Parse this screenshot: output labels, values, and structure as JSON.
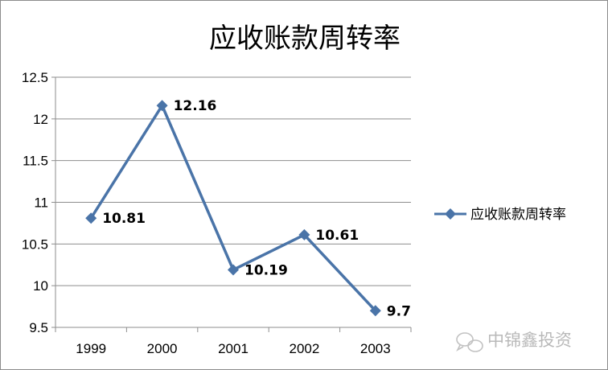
{
  "chart_data": {
    "type": "line",
    "title": "应收账款周转率",
    "categories": [
      "1999",
      "2000",
      "2001",
      "2002",
      "2003"
    ],
    "series": [
      {
        "name": "应收账款周转率",
        "values": [
          10.81,
          12.16,
          10.19,
          10.61,
          9.7
        ],
        "labels": [
          "10.81",
          "12.16",
          "10.19",
          "10.61",
          "9.7"
        ],
        "color": "#4a74a8",
        "marker": "diamond"
      }
    ],
    "ylim": [
      9.5,
      12.5
    ],
    "yticks": [
      "9.5",
      "10",
      "10.5",
      "11",
      "11.5",
      "12",
      "12.5"
    ],
    "grid": true,
    "legend_position": "right"
  },
  "watermark": {
    "text": "中锦鑫投资",
    "icon": "wechat-icon"
  }
}
